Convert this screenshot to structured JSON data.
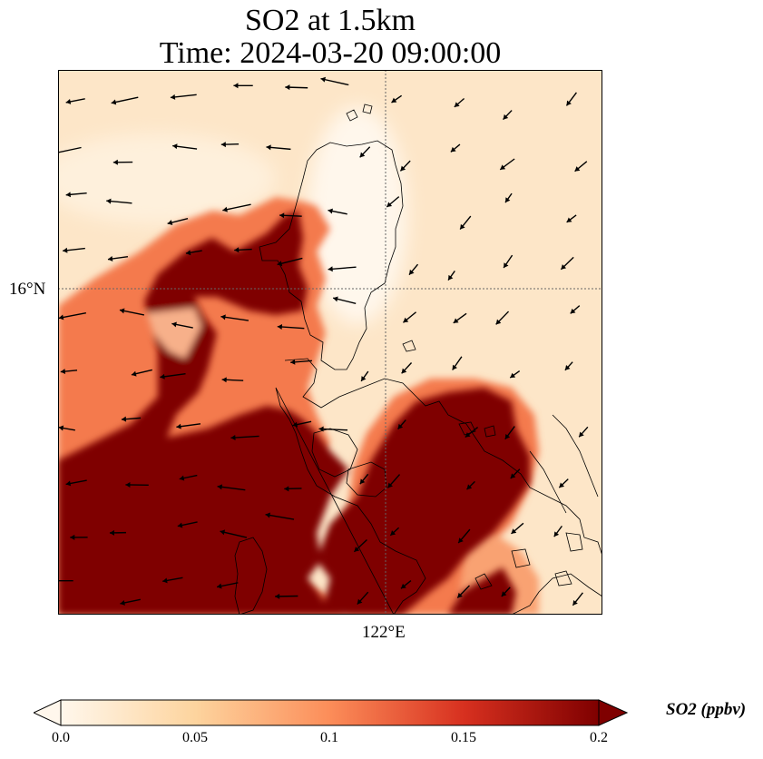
{
  "title_line1": "SO2 at 1.5km",
  "title_line2": "Time: 2024-03-20 09:00:00",
  "map": {
    "lat_label": "16°N",
    "lon_label": "122°E",
    "gridline_style": "dotted",
    "field_colormap": "OrRd",
    "arrow_color": "#000000",
    "coastline_color": "#000000"
  },
  "colorbar": {
    "title": "SO2 (ppbv)",
    "ticks": [
      "0.0",
      "0.05",
      "0.1",
      "0.15",
      "0.2"
    ],
    "colors": [
      "#fff7ec",
      "#fdd49e",
      "#fc8d59",
      "#d7301f",
      "#7f0000"
    ],
    "extend": "both"
  }
}
